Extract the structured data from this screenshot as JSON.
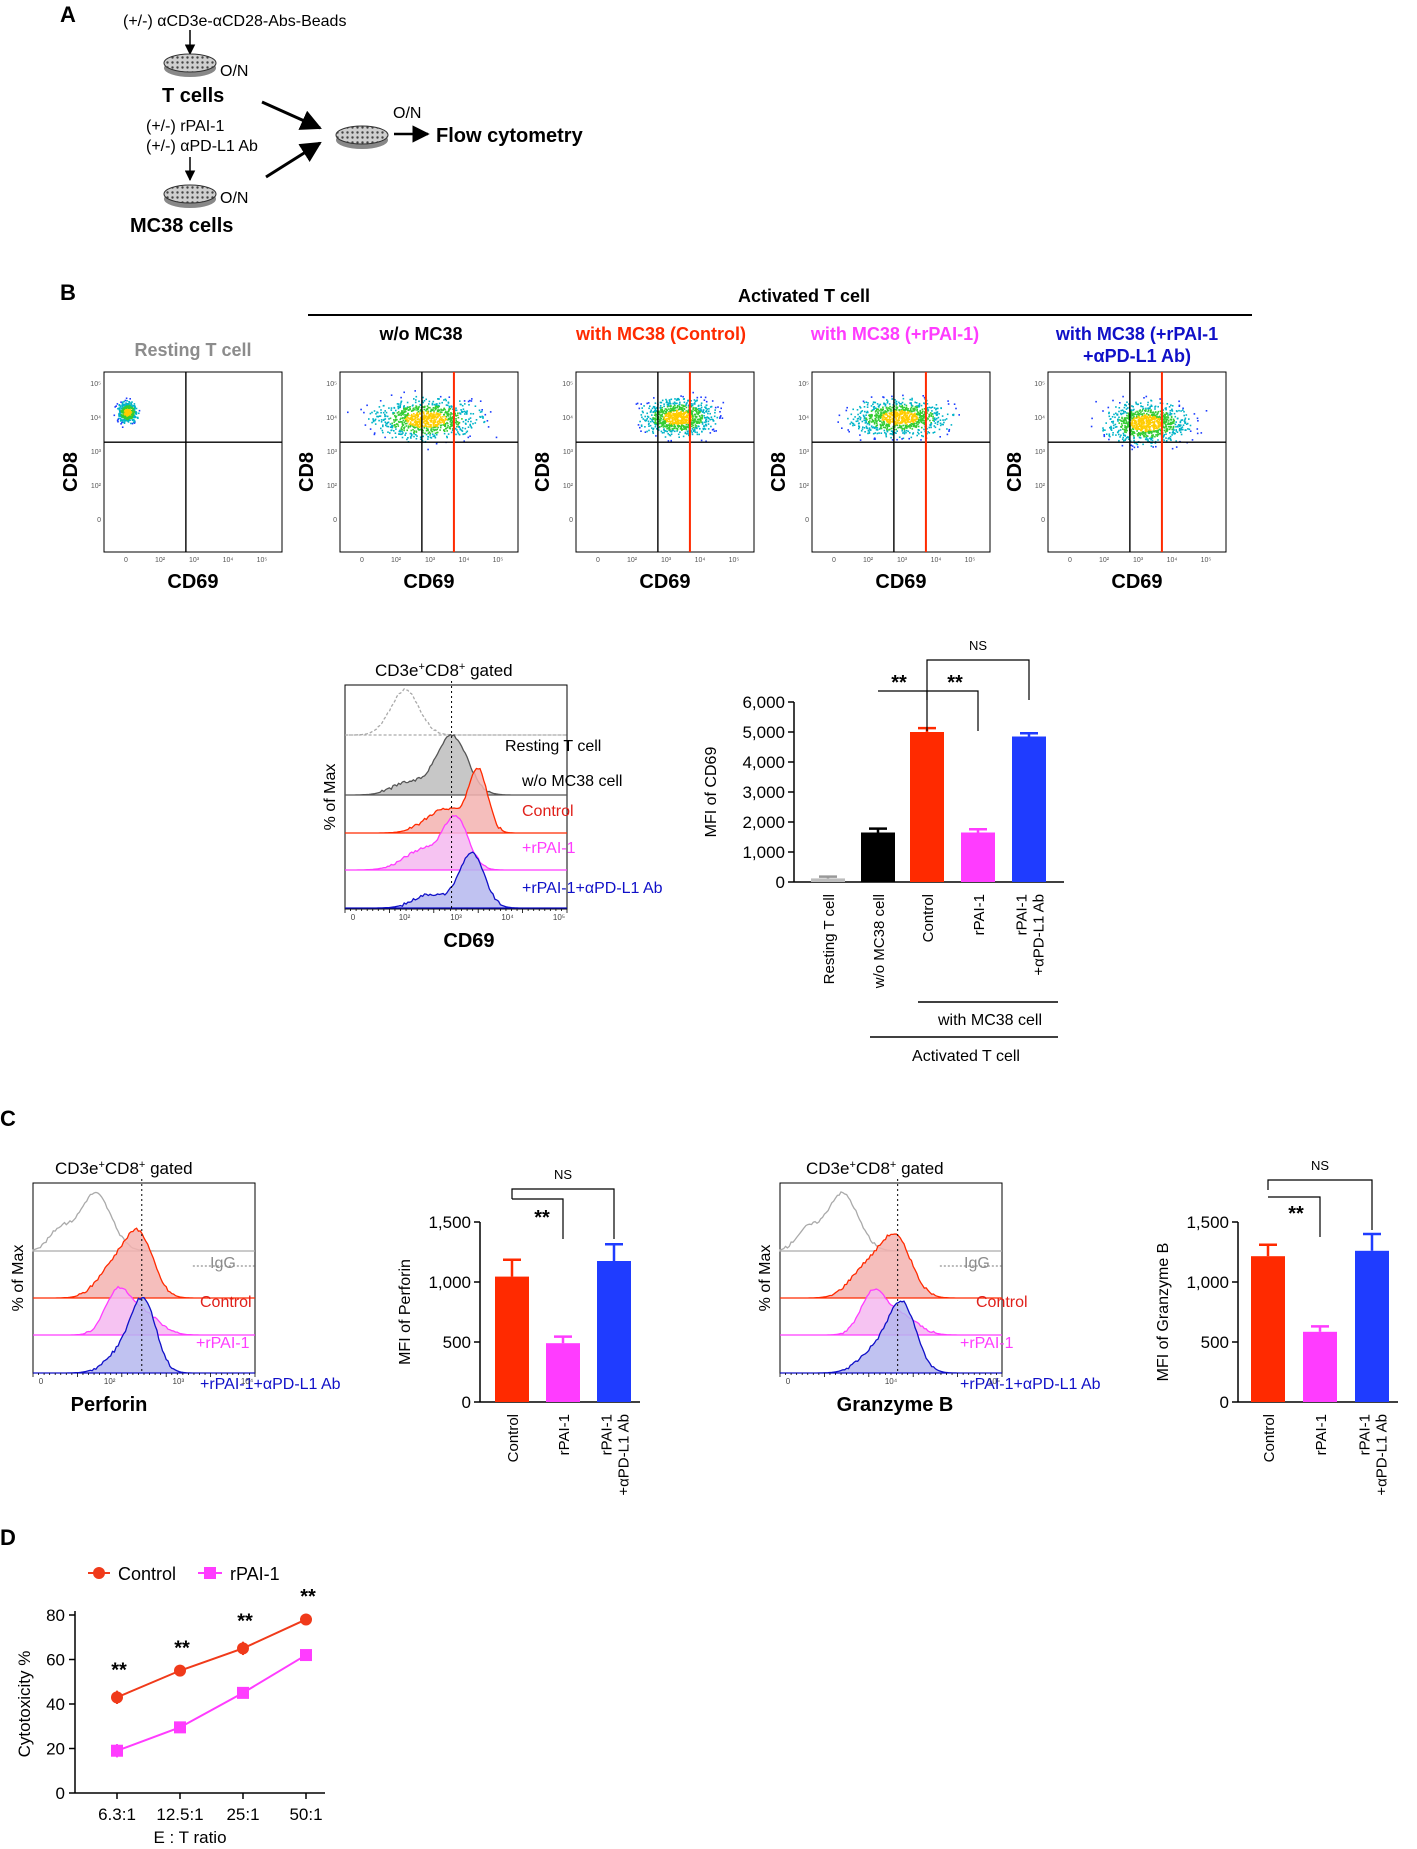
{
  "colors": {
    "black": "#000000",
    "red": "#ff2a00",
    "magenta": "#ff3cff",
    "blue": "#1f3cff",
    "gray": "#8c8c8c",
    "darkred": "#e0201a",
    "navy": "#1010c8",
    "fill_gray": "#bdbdbd",
    "fill_red": "#f3b3b0",
    "fill_pink": "#f5b8f0",
    "fill_blue": "#b5b7ee"
  },
  "panelA": {
    "letter": "A",
    "beads": "(+/-) αCD3e-αCD28-Abs-Beads",
    "on1": "O/N",
    "tcells": "T cells",
    "rpai": "(+/-) rPAI-1",
    "pdl1": "(+/-) αPD-L1 Ab",
    "on2": "O/N",
    "mc38": "MC38 cells",
    "on3": "O/N",
    "flow": "Flow cytometry"
  },
  "panelB": {
    "letter": "B",
    "activated_header": "Activated T cell",
    "plots": [
      {
        "title": "Resting T cell",
        "title2": "",
        "ylabel": "CD8",
        "xlabel": "CD69",
        "color": "gray"
      },
      {
        "title": "w/o MC38",
        "title2": "",
        "ylabel": "CD8",
        "xlabel": "CD69",
        "color": "black"
      },
      {
        "title": "with MC38 (Control)",
        "title2": "",
        "ylabel": "CD8",
        "xlabel": "CD69",
        "color": "red"
      },
      {
        "title": "with MC38 (+rPAI-1)",
        "title2": "",
        "ylabel": "CD8",
        "xlabel": "CD69",
        "color": "magenta"
      },
      {
        "title": "with MC38 (+rPAI-1",
        "title2": "+αPD-L1 Ab)",
        "ylabel": "CD8",
        "xlabel": "CD69",
        "color": "navy"
      }
    ],
    "histogram": {
      "title_pre": "CD3e",
      "sup1": "+",
      "title_mid": "CD8",
      "sup2": "+",
      "title_post": " gated",
      "ylabel": "% of Max",
      "xlabel": "CD69",
      "labels": [
        "Resting T cell",
        "w/o MC38 cell",
        "Control",
        "+rPAI-1",
        "+rPAI-1+αPD-L1 Ab"
      ]
    }
  },
  "chart_data": [
    {
      "type": "bar",
      "title": "",
      "ylabel": "MFI of CD69",
      "categories": [
        "Resting T cell",
        "w/o MC38 cell",
        "Control",
        "rPAI-1",
        "rPAI-1\n+αPD-L1 Ab"
      ],
      "values": [
        120,
        1650,
        5000,
        1650,
        4850
      ],
      "errors": [
        60,
        130,
        130,
        110,
        110
      ],
      "ylim": [
        0,
        6000
      ],
      "yticks": [
        "0",
        "1,000",
        "2,000",
        "3,000",
        "4,000",
        "5,000",
        "6,000"
      ],
      "significance": [
        "**",
        "**",
        "NS"
      ],
      "group_label_inner": "with MC38 cell",
      "group_label_outer": "Activated T cell"
    },
    {
      "type": "bar",
      "ylabel": "MFI of Perforin",
      "categories": [
        "Control",
        "rPAI-1",
        "rPAI-1\n+αPD-L1 Ab"
      ],
      "values": [
        1045,
        490,
        1175
      ],
      "errors": [
        140,
        55,
        140
      ],
      "ylim": [
        0,
        1500
      ],
      "yticks": [
        "0",
        "500",
        "1,000",
        "1,500"
      ],
      "significance": [
        "**",
        "NS"
      ]
    },
    {
      "type": "bar",
      "ylabel": "MFI of Granzyme B",
      "categories": [
        "Control",
        "rPAI-1",
        "rPAI-1\n+αPD-L1 Ab"
      ],
      "values": [
        1215,
        585,
        1260
      ],
      "errors": [
        95,
        45,
        140
      ],
      "ylim": [
        0,
        1500
      ],
      "yticks": [
        "0",
        "500",
        "1,000",
        "1,500"
      ],
      "significance": [
        "**",
        "NS"
      ]
    },
    {
      "type": "line",
      "xlabel": "E : T ratio",
      "ylabel": "Cytotoxicity %",
      "categories": [
        "6.3:1",
        "12.5:1",
        "25:1",
        "50:1"
      ],
      "series": [
        {
          "name": "Control",
          "values": [
            43,
            55,
            65,
            78
          ],
          "errors": [
            3,
            1,
            3,
            1
          ]
        },
        {
          "name": "rPAI-1",
          "values": [
            19,
            29.5,
            45,
            62
          ],
          "errors": [
            3,
            2,
            2.5,
            1.5
          ]
        }
      ],
      "ylim": [
        0,
        80
      ],
      "yticks": [
        "0",
        "20",
        "40",
        "60",
        "80"
      ],
      "significance": [
        "**",
        "**",
        "**",
        "**"
      ]
    }
  ],
  "panelC": {
    "letter": "C",
    "hist1": {
      "title_pre": "CD3e",
      "sup1": "+",
      "title_mid": "CD8",
      "sup2": "+",
      "title_post": " gated",
      "ylabel": "% of Max",
      "xlabel": "Perforin",
      "labels": [
        "IgG",
        "Control",
        "+rPAI-1",
        "+rPAI-1+αPD-L1 Ab"
      ]
    },
    "hist2": {
      "title_pre": "CD3e",
      "sup1": "+",
      "title_mid": "CD8",
      "sup2": "+",
      "title_post": " gated",
      "ylabel": "% of Max",
      "xlabel": "Granzyme B",
      "labels": [
        "IgG",
        "Control",
        "+rPAI-1",
        "+rPAI-1+αPD-L1 Ab"
      ]
    }
  },
  "panelD": {
    "letter": "D"
  }
}
